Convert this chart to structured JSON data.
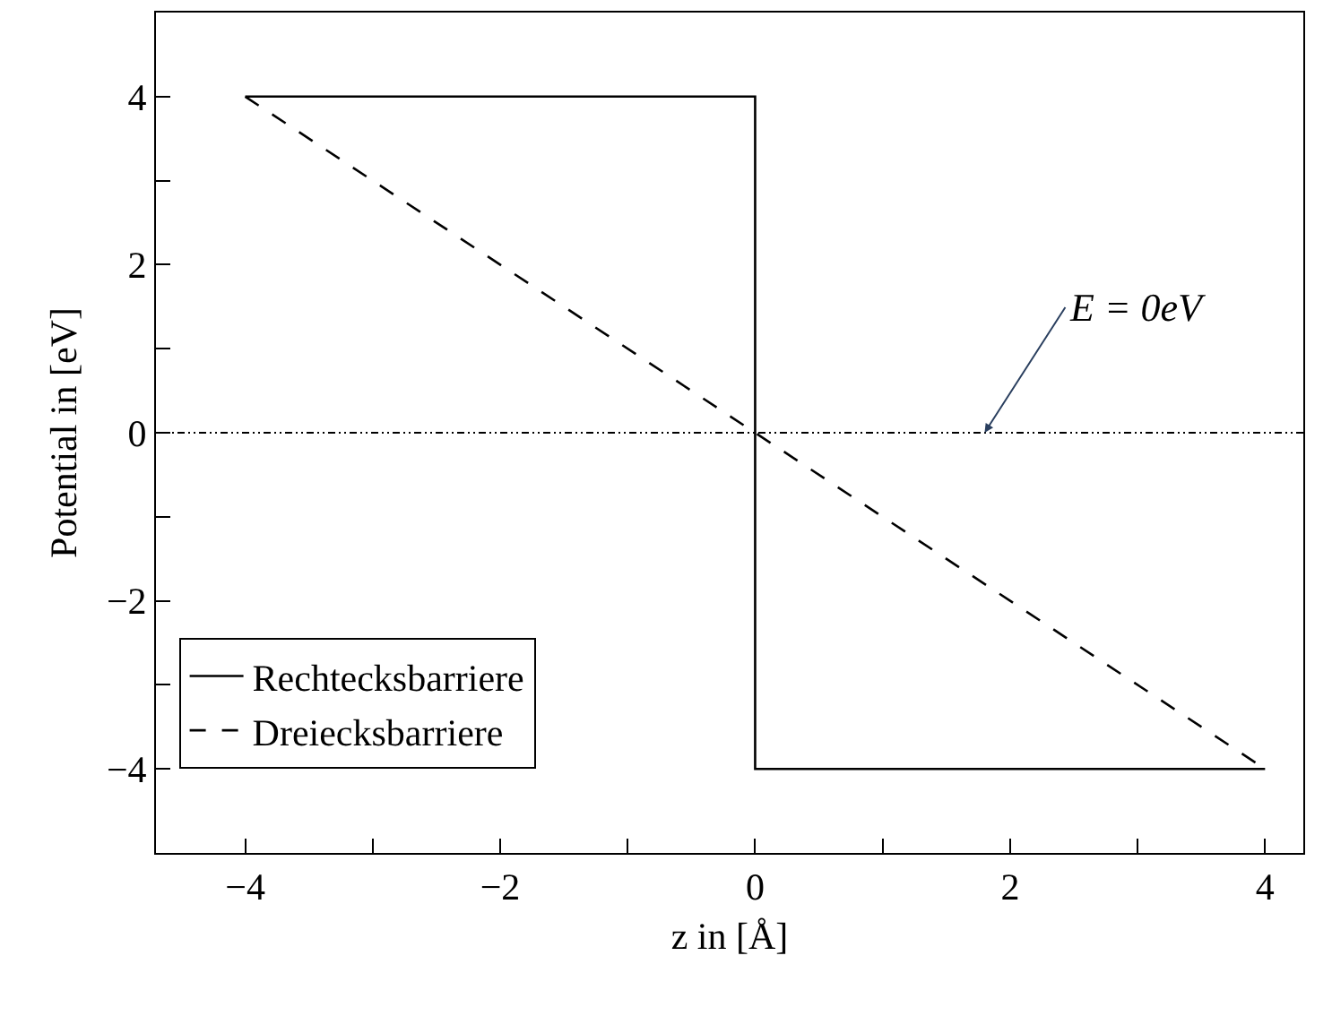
{
  "chart_data": {
    "type": "line",
    "xlabel": "z in [Å]",
    "ylabel": "Potential in [eV]",
    "series": [
      {
        "name": "Rechtecksbarriere",
        "color": "#000000",
        "line_style": "solid",
        "x": [
          -4,
          0,
          0,
          4
        ],
        "values": [
          4,
          4,
          -4,
          -4
        ]
      },
      {
        "name": "Dreiecksbarriere",
        "color": "#000000",
        "line_style": "dashed",
        "x": [
          -4,
          4
        ],
        "values": [
          4,
          -4
        ]
      }
    ],
    "xlim": [
      -4.7,
      4.3
    ],
    "ylim": [
      -5,
      5
    ],
    "xticks": [
      -4,
      {
        "value": -3,
        "label": null
      },
      -2,
      {
        "value": -1,
        "label": null
      },
      0,
      {
        "value": 1,
        "label": null
      },
      2,
      {
        "value": 3,
        "label": null
      },
      4
    ],
    "yticks": [
      -4,
      {
        "value": -3,
        "label": null
      },
      -2,
      {
        "value": -1,
        "label": null
      },
      0,
      {
        "value": 1,
        "label": null
      },
      2,
      {
        "value": 3,
        "label": null
      },
      4
    ],
    "ref_lines": [
      {
        "axis": "y",
        "value": 0,
        "color": "#000000",
        "line_style": "dotted"
      }
    ],
    "annotations": [
      {
        "text": "E = 0eV",
        "x": 1.8,
        "y": 0
      }
    ],
    "legend": "bottom left",
    "grid": false,
    "marker": "none"
  }
}
